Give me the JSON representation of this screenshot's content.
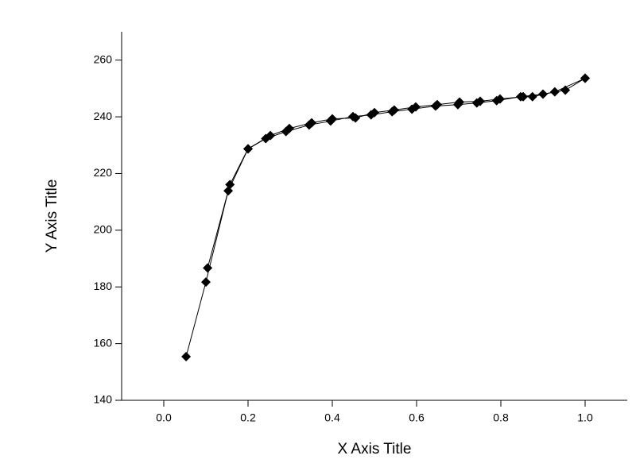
{
  "chart_data": {
    "type": "line",
    "x_label": "X Axis Title",
    "y_label": "Y Axis Title",
    "xlim": [
      -0.1,
      1.1
    ],
    "xticks": [
      {
        "value": 0,
        "label": "0.0"
      },
      0.2,
      0.4,
      0.6,
      0.8,
      {
        "value": 1,
        "label": "1.0"
      }
    ],
    "ylim": [
      140,
      270
    ],
    "yticks": [
      140,
      160,
      180,
      200,
      220,
      240,
      260
    ],
    "marker": "diamond",
    "series": [
      {
        "color": "#000000",
        "x": [
          0.053,
          0.1,
          0.153,
          0.2,
          0.242,
          0.29,
          0.345,
          0.396,
          0.449,
          0.492,
          0.542,
          0.589,
          0.645,
          0.698,
          0.743,
          0.79,
          0.847,
          0.9,
          0.953,
          1.0
        ],
        "values": [
          155.4,
          181.7,
          213.9,
          228.7,
          232.3,
          234.8,
          237.1,
          238.5,
          240.1,
          240.7,
          241.8,
          242.7,
          243.8,
          244.3,
          244.9,
          245.7,
          247.1,
          248.0,
          249.4,
          253.6
        ]
      },
      {
        "color": "#000000",
        "x": [
          0.104,
          0.157,
          0.2,
          0.253,
          0.298,
          0.351,
          0.4,
          0.455,
          0.5,
          0.547,
          0.598,
          0.649,
          0.702,
          0.751,
          0.798,
          0.853,
          0.875,
          0.928,
          1.0
        ],
        "values": [
          186.7,
          216.1,
          228.7,
          233.4,
          235.9,
          237.9,
          239.3,
          239.6,
          241.5,
          242.4,
          243.5,
          244.3,
          245.2,
          245.5,
          246.3,
          247.1,
          247.1,
          248.8,
          253.6
        ]
      }
    ]
  }
}
